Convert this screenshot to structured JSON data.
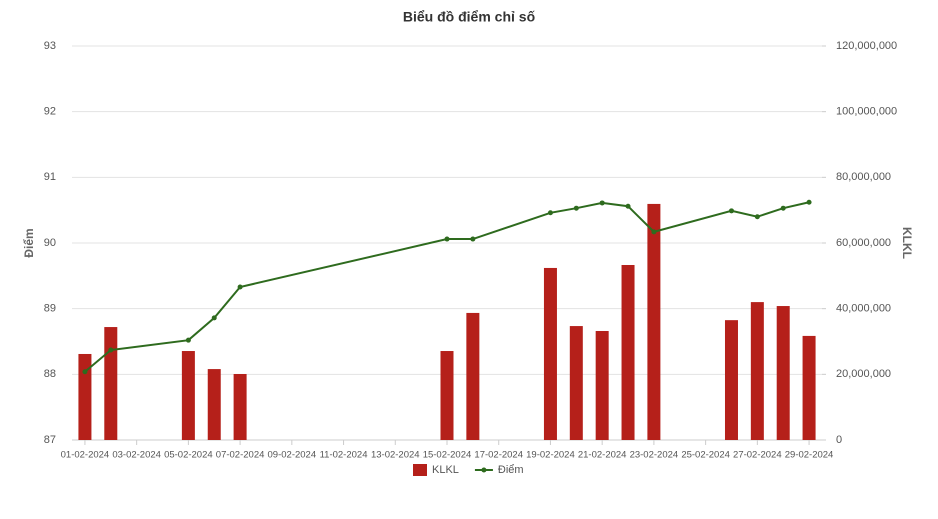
{
  "chart_data": {
    "type": "combo",
    "title": "Biểu đồ điểm chỉ số",
    "y_label": "Điểm",
    "y2_label": "KLKL",
    "x": [
      "01-02-2024",
      "02-02-2024",
      "05-02-2024",
      "06-02-2024",
      "07-02-2024",
      "15-02-2024",
      "16-02-2024",
      "19-02-2024",
      "20-02-2024",
      "21-02-2024",
      "22-02-2024",
      "23-02-2024",
      "26-02-2024",
      "27-02-2024",
      "28-02-2024",
      "29-02-2024"
    ],
    "xlim": [
      "01-02-2024",
      "29-02-2024"
    ],
    "xticks": [
      "01-02-2024",
      "03-02-2024",
      "05-02-2024",
      "07-02-2024",
      "09-02-2024",
      "11-02-2024",
      "13-02-2024",
      "15-02-2024",
      "17-02-2024",
      "19-02-2024",
      "21-02-2024",
      "23-02-2024",
      "25-02-2024",
      "27-02-2024",
      "29-02-2024"
    ],
    "ylim": [
      87,
      93
    ],
    "yticks": [
      87,
      88,
      89,
      90,
      91,
      92,
      93
    ],
    "y2lim": [
      0,
      120000000
    ],
    "y2ticks": [
      0,
      {
        "value": 20000000,
        "label": "20,000,000"
      },
      {
        "value": 40000000,
        "label": "40,000,000"
      },
      {
        "value": 60000000,
        "label": "60,000,000"
      },
      {
        "value": 80000000,
        "label": "80,000,000"
      },
      {
        "value": 100000000,
        "label": "100,000,000"
      },
      {
        "value": 120000000,
        "label": "120,000,000"
      }
    ],
    "grid": true,
    "legend": "bottom",
    "series": [
      {
        "name": "KLKL",
        "type": "bar",
        "axis": "y2",
        "color": "#b5201a",
        "values": [
          26200000,
          34400000,
          27100000,
          21600000,
          20100000,
          27100000,
          38700000,
          52400000,
          34700000,
          33200000,
          53300000,
          71900000,
          36500000,
          42000000,
          40800000,
          31700000
        ]
      },
      {
        "name": "Điểm",
        "type": "line",
        "color": "#2e6b1e",
        "values": [
          88.04,
          88.37,
          88.52,
          88.86,
          89.33,
          90.06,
          90.06,
          90.46,
          90.53,
          90.61,
          90.56,
          90.17,
          90.49,
          90.4,
          90.53,
          90.62
        ]
      }
    ]
  }
}
